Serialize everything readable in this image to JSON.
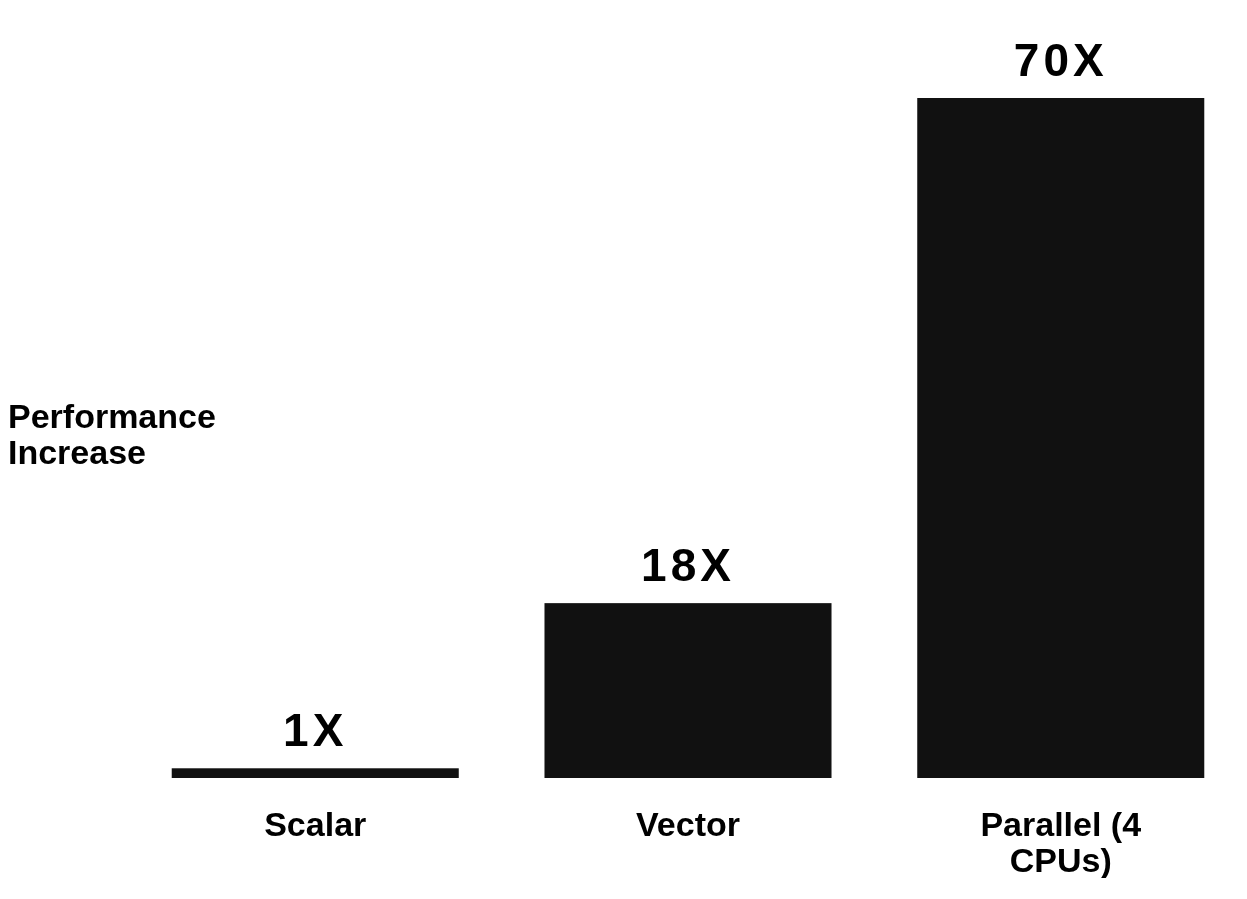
{
  "chart_data": {
    "type": "bar",
    "ylabel": "Performance Increase",
    "categories": [
      "Scalar",
      "Vector",
      "Parallel (4 CPUs)"
    ],
    "values": [
      1,
      18,
      70
    ],
    "value_labels": [
      "1X",
      "18X",
      "70X"
    ],
    "color": "#111111"
  }
}
